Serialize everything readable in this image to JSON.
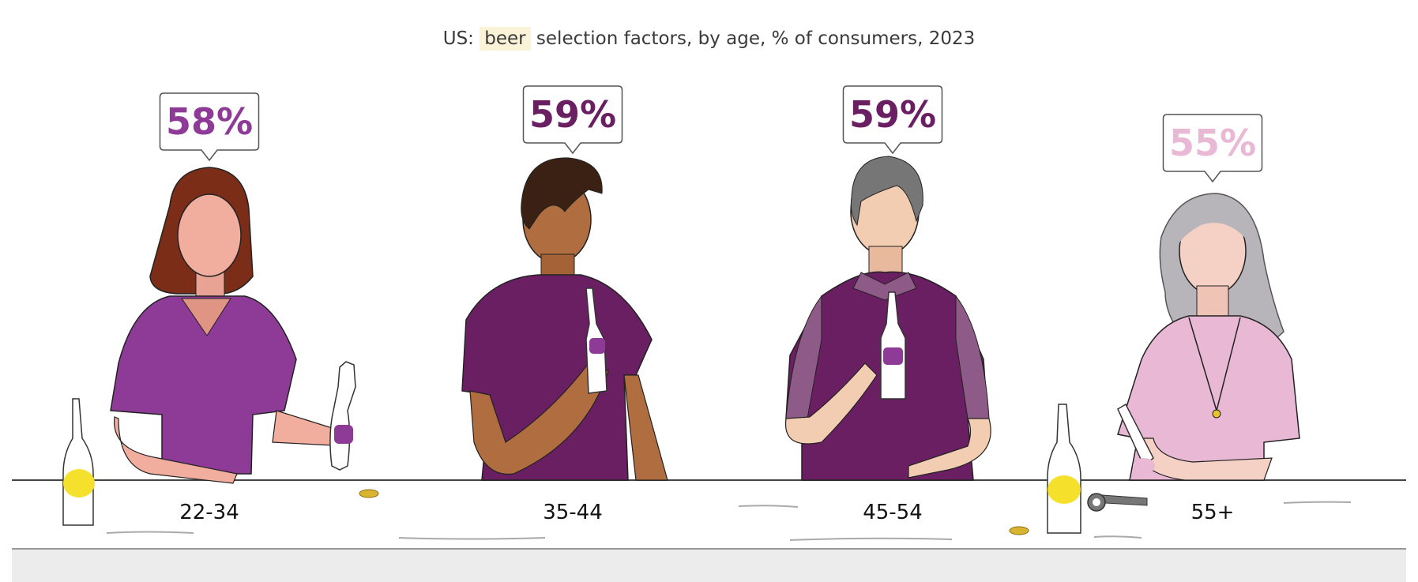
{
  "chart_data": {
    "type": "bar",
    "title_prefix": "US:",
    "title_highlight": "beer",
    "title_suffix": "selection factors, by age, % of consumers, 2023",
    "categories": [
      "22-34",
      "35-44",
      "45-54",
      "55+"
    ],
    "values": [
      58,
      59,
      59,
      55
    ],
    "value_labels": [
      "58%",
      "59%",
      "59%",
      "55%"
    ],
    "unit": "%",
    "colors": [
      "#8e3a97",
      "#6b1f63",
      "#6b1f63",
      "#e8b8d4"
    ]
  }
}
